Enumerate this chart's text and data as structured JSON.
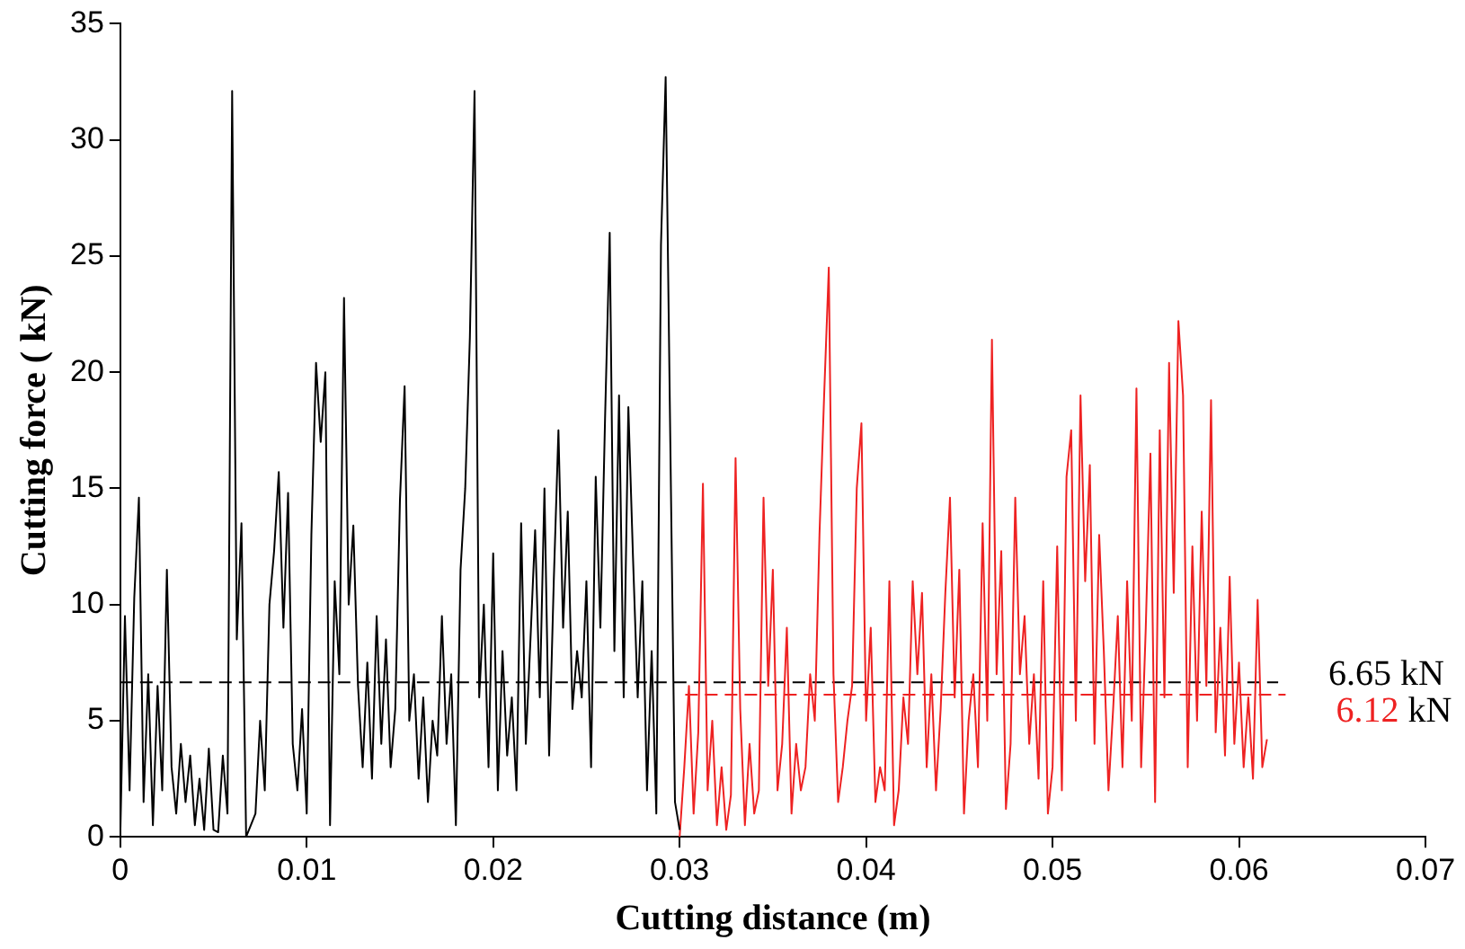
{
  "chart_data": {
    "type": "line",
    "xlabel": "Cutting distance (m)",
    "ylabel": "Cutting force ( kN)",
    "xlim": [
      0,
      0.07
    ],
    "xticks": [
      0,
      0.01,
      0.02,
      0.03,
      0.04,
      0.05,
      0.06,
      0.07
    ],
    "ylim": [
      0,
      35
    ],
    "yticks": [
      0,
      5,
      10,
      15,
      20,
      25,
      30,
      35
    ],
    "grid": false,
    "legend": false,
    "marker": "none",
    "series": [
      {
        "color": "#000000",
        "line_style": "solid",
        "x": [
          0,
          0.00025,
          0.0005,
          0.00075,
          0.001,
          0.00125,
          0.0015,
          0.00175,
          0.002,
          0.00225,
          0.0025,
          0.00275,
          0.003,
          0.00325,
          0.0035,
          0.00375,
          0.004,
          0.00425,
          0.0045,
          0.00475,
          0.005,
          0.00525,
          0.0055,
          0.00575,
          0.006,
          0.00625,
          0.0065,
          0.00675,
          0.007,
          0.00725,
          0.0075,
          0.00775,
          0.008,
          0.00825,
          0.0085,
          0.00875,
          0.009,
          0.00925,
          0.0095,
          0.00975,
          0.01,
          0.01025,
          0.0105,
          0.01075,
          0.011,
          0.01125,
          0.0115,
          0.01175,
          0.012,
          0.01225,
          0.0125,
          0.01275,
          0.013,
          0.01325,
          0.0135,
          0.01375,
          0.014,
          0.01425,
          0.0145,
          0.01475,
          0.015,
          0.01525,
          0.0155,
          0.01575,
          0.016,
          0.01625,
          0.0165,
          0.01675,
          0.017,
          0.01725,
          0.0175,
          0.01775,
          0.018,
          0.01825,
          0.0185,
          0.01875,
          0.019,
          0.01925,
          0.0195,
          0.01975,
          0.02,
          0.02025,
          0.0205,
          0.02075,
          0.021,
          0.02125,
          0.0215,
          0.02175,
          0.022,
          0.02225,
          0.0225,
          0.02275,
          0.023,
          0.02325,
          0.0235,
          0.02375,
          0.024,
          0.02425,
          0.0245,
          0.02475,
          0.025,
          0.02525,
          0.0255,
          0.02575,
          0.026,
          0.02625,
          0.0265,
          0.02675,
          0.027,
          0.02725,
          0.0275,
          0.02775,
          0.028,
          0.02825,
          0.0285,
          0.02875,
          0.029,
          0.02925,
          0.0295,
          0.02975,
          0.03
        ],
        "values": [
          0,
          9.5,
          2,
          10.3,
          14.6,
          1.5,
          7,
          0.5,
          6.5,
          2,
          11.5,
          3,
          1,
          4,
          1.5,
          3.5,
          0.5,
          2.5,
          0.3,
          3.8,
          0.3,
          0.2,
          3.5,
          1,
          32.1,
          8.5,
          13.5,
          0,
          0.5,
          1,
          5,
          2,
          10,
          12.3,
          15.7,
          9,
          14.8,
          4,
          2,
          5.5,
          1,
          13,
          20.4,
          17,
          20,
          0.5,
          11,
          7,
          23.2,
          10,
          13.4,
          6.5,
          3,
          7.5,
          2.5,
          9.5,
          4,
          8.5,
          3,
          5.5,
          14.5,
          19.4,
          5,
          7,
          2.5,
          6,
          1.5,
          5,
          3.5,
          9.5,
          4,
          7,
          0.5,
          11.5,
          15,
          21.5,
          32.1,
          6,
          10,
          3,
          12.2,
          2,
          8,
          3.5,
          6,
          2,
          13.5,
          4,
          8.5,
          13.2,
          6,
          15,
          3.5,
          11,
          17.5,
          9,
          14,
          5.5,
          8,
          6,
          11,
          3,
          15.5,
          9,
          18,
          26,
          8,
          19,
          6,
          18.5,
          12,
          6,
          11,
          2,
          8,
          1,
          25.5,
          32.7,
          17,
          1.5,
          0.3
        ]
      },
      {
        "color": "#ee2222",
        "line_style": "solid",
        "x": [
          0.03,
          0.03025,
          0.0305,
          0.03075,
          0.031,
          0.03125,
          0.0315,
          0.03175,
          0.032,
          0.03225,
          0.0325,
          0.03275,
          0.033,
          0.03325,
          0.0335,
          0.03375,
          0.034,
          0.03425,
          0.0345,
          0.03475,
          0.035,
          0.03525,
          0.0355,
          0.03575,
          0.036,
          0.03625,
          0.0365,
          0.03675,
          0.037,
          0.03725,
          0.0375,
          0.03775,
          0.038,
          0.03825,
          0.0385,
          0.03875,
          0.039,
          0.03925,
          0.0395,
          0.03975,
          0.04,
          0.04025,
          0.0405,
          0.04075,
          0.041,
          0.04125,
          0.0415,
          0.04175,
          0.042,
          0.04225,
          0.0425,
          0.04275,
          0.043,
          0.04325,
          0.0435,
          0.04375,
          0.044,
          0.04425,
          0.0445,
          0.04475,
          0.045,
          0.04525,
          0.0455,
          0.04575,
          0.046,
          0.04625,
          0.0465,
          0.04675,
          0.047,
          0.04725,
          0.0475,
          0.04775,
          0.048,
          0.04825,
          0.0485,
          0.04875,
          0.049,
          0.04925,
          0.0495,
          0.04975,
          0.05,
          0.05025,
          0.0505,
          0.05075,
          0.051,
          0.05125,
          0.0515,
          0.05175,
          0.052,
          0.05225,
          0.0525,
          0.05275,
          0.053,
          0.05325,
          0.0535,
          0.05375,
          0.054,
          0.05425,
          0.0545,
          0.05475,
          0.055,
          0.05525,
          0.0555,
          0.05575,
          0.056,
          0.05625,
          0.0565,
          0.05675,
          0.057,
          0.05725,
          0.0575,
          0.05775,
          0.058,
          0.05825,
          0.0585,
          0.05875,
          0.059,
          0.05925,
          0.0595,
          0.05975,
          0.06,
          0.06025,
          0.0605,
          0.06075,
          0.061,
          0.06125,
          0.0615
        ],
        "values": [
          0,
          3,
          6.5,
          1,
          4.5,
          15.2,
          2,
          5,
          0.5,
          3,
          0.3,
          1.8,
          16.3,
          5.5,
          0.5,
          4,
          1,
          2,
          14.6,
          6.5,
          11.5,
          2,
          4,
          9,
          1,
          4,
          2,
          3,
          7,
          5,
          13,
          19,
          24.5,
          7,
          1.5,
          3,
          5,
          6.5,
          15,
          17.8,
          5,
          9,
          1.5,
          3,
          2,
          11,
          0.5,
          2,
          6,
          4,
          11,
          7,
          10.5,
          3,
          7,
          2,
          5.5,
          10.5,
          14.6,
          6,
          11.5,
          1,
          5,
          7,
          3,
          13.5,
          5,
          21.4,
          7,
          12.3,
          1.2,
          4,
          14.6,
          7,
          9.5,
          4,
          7,
          2.5,
          11,
          1,
          3,
          12.5,
          2,
          15.5,
          17.5,
          5,
          19,
          11,
          16,
          4,
          13,
          8,
          2,
          5.5,
          9.5,
          3,
          11,
          5,
          19.3,
          3,
          9,
          16.5,
          1.5,
          17.5,
          6,
          20.4,
          10.5,
          22.2,
          19,
          3,
          12.5,
          5,
          14,
          6.5,
          18.8,
          4.5,
          9,
          3.5,
          11.2,
          4,
          7.5,
          3,
          6,
          2.5,
          10.2,
          3,
          4.2
        ]
      },
      {
        "name": "6.65 kN",
        "color": "#000000",
        "line_style": "dashed",
        "x": [
          0,
          0.0621
        ],
        "values": [
          6.65,
          6.65
        ]
      },
      {
        "name": "6.12 kN",
        "color": "#ee2222",
        "line_style": "dashed",
        "x": [
          0.0303,
          0.0625
        ],
        "values": [
          6.12,
          6.12
        ]
      }
    ]
  }
}
